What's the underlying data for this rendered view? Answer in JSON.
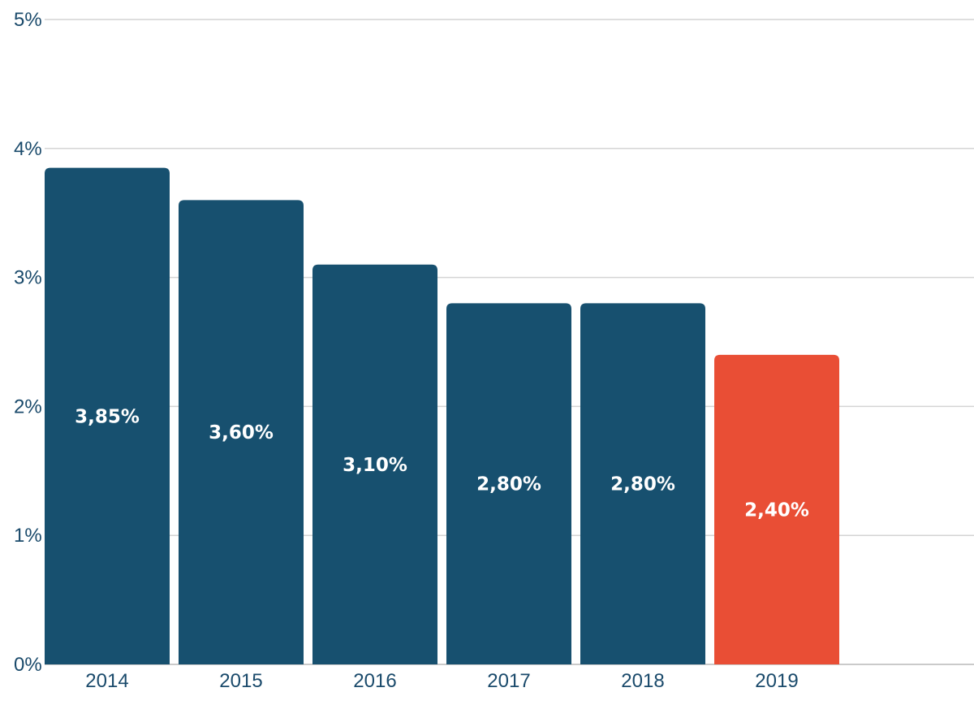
{
  "chart_data": {
    "type": "bar",
    "categories": [
      "2014",
      "2015",
      "2016",
      "2017",
      "2018",
      "2019"
    ],
    "values": [
      3.85,
      3.6,
      3.1,
      2.8,
      2.8,
      2.4
    ],
    "data_labels": [
      "3,85%",
      "3,60%",
      "3,10%",
      "2,80%",
      "2,80%",
      "2,40%"
    ],
    "bar_colors": [
      "#17506f",
      "#17506f",
      "#17506f",
      "#17506f",
      "#17506f",
      "#e94e35"
    ],
    "yticks": [
      0,
      1,
      2,
      3,
      4,
      5
    ],
    "ytick_labels": [
      "0%",
      "1%",
      "2%",
      "3%",
      "4%",
      "5%"
    ],
    "ylim": [
      0,
      5
    ],
    "grid": true,
    "title": "",
    "xlabel": "",
    "ylabel": ""
  }
}
